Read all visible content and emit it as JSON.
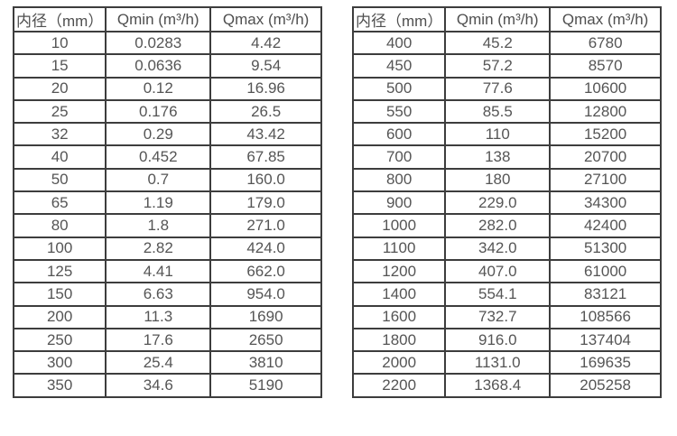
{
  "page": {
    "background": "#ffffff"
  },
  "colors": {
    "border": "#3d3d3d",
    "text": "#555555"
  },
  "chart_data": [
    {
      "type": "table",
      "name": "flow-spec-table-small-diameters",
      "columns": [
        "内径（mm）",
        "Qmin (m³/h)",
        "Qmax (m³/h)"
      ],
      "rows": [
        [
          "10",
          "0.0283",
          "4.42"
        ],
        [
          "15",
          "0.0636",
          "9.54"
        ],
        [
          "20",
          "0.12",
          "16.96"
        ],
        [
          "25",
          "0.176",
          "26.5"
        ],
        [
          "32",
          "0.29",
          "43.42"
        ],
        [
          "40",
          "0.452",
          "67.85"
        ],
        [
          "50",
          "0.7",
          "160.0"
        ],
        [
          "65",
          "1.19",
          "179.0"
        ],
        [
          "80",
          "1.8",
          "271.0"
        ],
        [
          "100",
          "2.82",
          "424.0"
        ],
        [
          "125",
          "4.41",
          "662.0"
        ],
        [
          "150",
          "6.63",
          "954.0"
        ],
        [
          "200",
          "11.3",
          "1690"
        ],
        [
          "250",
          "17.6",
          "2650"
        ],
        [
          "300",
          "25.4",
          "3810"
        ],
        [
          "350",
          "34.6",
          "5190"
        ]
      ]
    },
    {
      "type": "table",
      "name": "flow-spec-table-large-diameters",
      "columns": [
        "内径（mm）",
        "Qmin (m³/h)",
        "Qmax (m³/h)"
      ],
      "rows": [
        [
          "400",
          "45.2",
          "6780"
        ],
        [
          "450",
          "57.2",
          "8570"
        ],
        [
          "500",
          "77.6",
          "10600"
        ],
        [
          "550",
          "85.5",
          "12800"
        ],
        [
          "600",
          "110",
          "15200"
        ],
        [
          "700",
          "138",
          "20700"
        ],
        [
          "800",
          "180",
          "27100"
        ],
        [
          "900",
          "229.0",
          "34300"
        ],
        [
          "1000",
          "282.0",
          "42400"
        ],
        [
          "1100",
          "342.0",
          "51300"
        ],
        [
          "1200",
          "407.0",
          "61000"
        ],
        [
          "1400",
          "554.1",
          "83121"
        ],
        [
          "1600",
          "732.7",
          "108566"
        ],
        [
          "1800",
          "916.0",
          "137404"
        ],
        [
          "2000",
          "1131.0",
          "169635"
        ],
        [
          "2200",
          "1368.4",
          "205258"
        ]
      ]
    }
  ]
}
